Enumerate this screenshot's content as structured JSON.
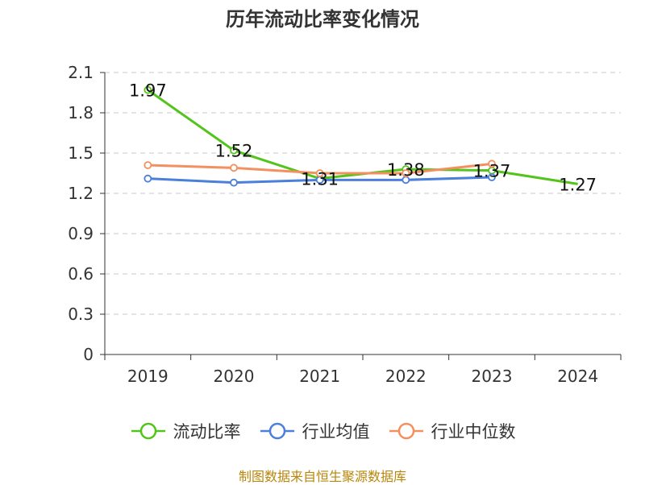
{
  "chart_data": {
    "type": "line",
    "title": "历年流动比率变化情况",
    "categories": [
      "2019",
      "2020",
      "2021",
      "2022",
      "2023",
      "2024"
    ],
    "ylim": [
      0,
      2.1
    ],
    "yticks": [
      "0",
      "0.3",
      "0.6",
      "0.9",
      "1.2",
      "1.5",
      "1.8",
      "2.1"
    ],
    "series": [
      {
        "name": "流动比率",
        "color": "#52c41a",
        "values": [
          1.97,
          1.52,
          1.31,
          1.38,
          1.37,
          1.27
        ],
        "labels": [
          "1.97",
          "1.52",
          "1.31",
          "1.38",
          "1.37",
          "1.27"
        ]
      },
      {
        "name": "行业均值",
        "color": "#4a7fdb",
        "values": [
          1.31,
          1.28,
          1.3,
          1.3,
          1.32,
          null
        ]
      },
      {
        "name": "行业中位数",
        "color": "#f4905f",
        "values": [
          1.41,
          1.39,
          1.35,
          1.35,
          1.42,
          null
        ]
      }
    ],
    "grid": true,
    "legend": "bottom"
  },
  "source": "制图数据来自恒生聚源数据库"
}
